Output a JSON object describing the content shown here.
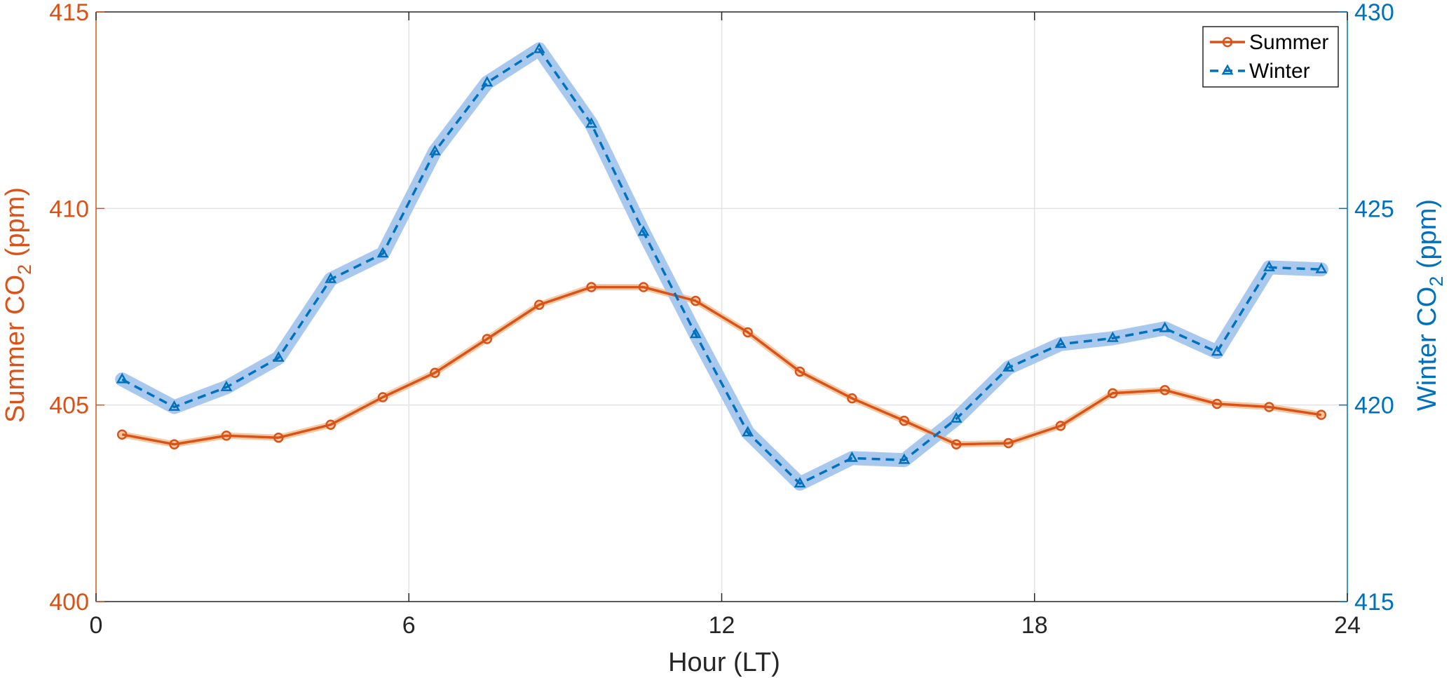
{
  "chart_data": {
    "type": "line",
    "xlabel": "Hour (LT)",
    "x_ticks": [
      "0",
      "6",
      "12",
      "18",
      "24"
    ],
    "xlim": [
      0,
      24
    ],
    "y_left": {
      "label_main": "Summer CO",
      "label_sub": "2",
      "label_unit": " (ppm)",
      "lim": [
        400,
        415
      ],
      "ticks": [
        "400",
        "405",
        "410",
        "415"
      ],
      "color": "#D95319"
    },
    "y_right": {
      "label_main": "Winter CO",
      "label_sub": "2",
      "label_unit": " (ppm)",
      "lim": [
        415,
        430
      ],
      "ticks": [
        "415",
        "420",
        "425",
        "430"
      ],
      "color": "#0072BD"
    },
    "grid": true,
    "legend_position": "top-right",
    "series": [
      {
        "name": "Summer",
        "axis": "left",
        "color": "#D95319",
        "band_color": "#F4C9A3",
        "line_style": "solid",
        "marker": "circle",
        "x": [
          0.5,
          1.5,
          2.5,
          3.5,
          4.5,
          5.5,
          6.5,
          7.5,
          8.5,
          9.5,
          10.5,
          11.5,
          12.5,
          13.5,
          14.5,
          15.5,
          16.5,
          17.5,
          18.5,
          19.5,
          20.5,
          21.5,
          22.5,
          23.5
        ],
        "values": [
          404.25,
          404.0,
          404.22,
          404.17,
          404.5,
          405.2,
          405.82,
          406.68,
          407.55,
          408.0,
          408.0,
          407.65,
          406.85,
          405.85,
          405.17,
          404.6,
          404.0,
          404.03,
          404.47,
          405.3,
          405.38,
          405.03,
          404.95,
          404.75
        ]
      },
      {
        "name": "Winter",
        "axis": "right",
        "color": "#0072BD",
        "band_color": "#A9C8EE",
        "line_style": "dashed",
        "marker": "triangle",
        "x": [
          0.5,
          1.5,
          2.5,
          3.5,
          4.5,
          5.5,
          6.5,
          7.5,
          8.5,
          9.5,
          10.5,
          11.5,
          12.5,
          13.5,
          14.5,
          15.5,
          16.5,
          17.5,
          18.5,
          19.5,
          20.5,
          21.5,
          22.5,
          23.5
        ],
        "values": [
          420.65,
          419.95,
          420.45,
          421.2,
          423.2,
          423.85,
          426.45,
          428.2,
          429.05,
          427.15,
          424.4,
          421.8,
          419.3,
          418.0,
          418.65,
          418.6,
          419.65,
          420.95,
          421.55,
          421.7,
          421.95,
          421.35,
          423.5,
          423.45
        ]
      }
    ]
  }
}
